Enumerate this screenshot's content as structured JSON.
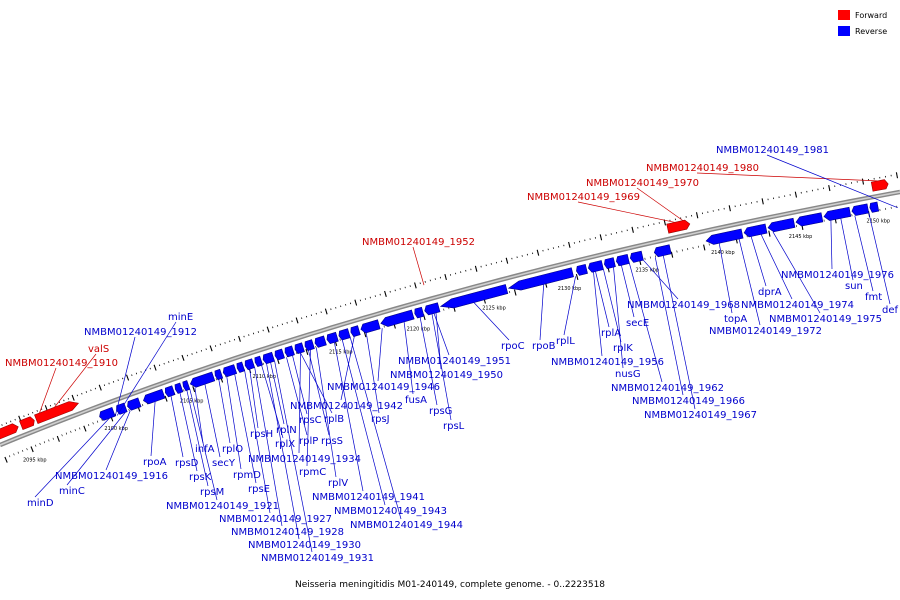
{
  "legend": {
    "forward": {
      "label": "Forward",
      "color": "#ff0000"
    },
    "reverse": {
      "label": "Reverse",
      "color": "#0000ff"
    }
  },
  "caption": "Neisseria meningitidis M01-240149, complete genome. - 0..2223518",
  "scale_labels": [
    "2095 kbp",
    "2100 kbp",
    "2105 kbp",
    "2110 kbp",
    "2115 kbp",
    "2120 kbp",
    "2125 kbp",
    "2130 kbp",
    "2135 kbp",
    "2140 kbp",
    "2145 kbp",
    "2150 kbp"
  ],
  "forward_gene_labels": [
    "NMBM01240149_1910",
    "valS",
    "NMBM01240149_1952",
    "NMBM01240149_1969",
    "NMBM01240149_1970",
    "NMBM01240149_1980"
  ],
  "reverse_gene_labels": [
    "minE",
    "NMBM01240149_1912",
    "NMBM01240149_1916",
    "minC",
    "minD",
    "rpoA",
    "rpsD",
    "rpsK",
    "rpsM",
    "infA",
    "secY",
    "rplO",
    "rpmD",
    "rpsE",
    "NMBM01240149_1921",
    "NMBM01240149_1927",
    "NMBM01240149_1928",
    "NMBM01240149_1930",
    "NMBM01240149_1931",
    "rpsH",
    "rplX",
    "rplN",
    "rplP",
    "rpsC",
    "rplB",
    "rpsS",
    "NMBM01240149_1934",
    "rpmC",
    "rplV",
    "NMBM01240149_1941",
    "NMBM01240149_1943",
    "NMBM01240149_1944",
    "NMBM01240149_1942",
    "rpsJ",
    "NMBM01240149_1946",
    "fusA",
    "rpsG",
    "rpsL",
    "NMBM01240149_1950",
    "NMBM01240149_1951",
    "rpoC",
    "rpoB",
    "rplL",
    "NMBM01240149_1956",
    "rplA",
    "rplK",
    "nusG",
    "secE",
    "NMBM01240149_1962",
    "NMBM01240149_1966",
    "NMBM01240149_1967",
    "NMBM01240149_1968",
    "topA",
    "dprA",
    "NMBM01240149_1972",
    "NMBM01240149_1974",
    "NMBM01240149_1975",
    "NMBM01240149_1976",
    "sun",
    "fmt",
    "def",
    "NMBM01240149_1981"
  ]
}
